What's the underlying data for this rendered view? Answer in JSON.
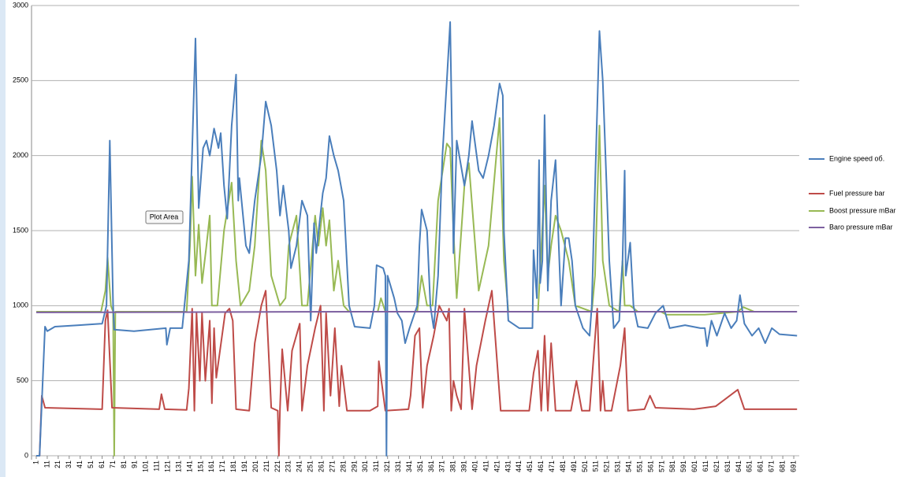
{
  "chart_data": {
    "type": "line",
    "annotation": "Plot Area",
    "xlim": [
      1,
      696
    ],
    "ylim": [
      0,
      3000
    ],
    "yticks": [
      0,
      500,
      1000,
      1500,
      2000,
      2500,
      3000
    ],
    "xticks": [
      1,
      11,
      21,
      31,
      41,
      51,
      61,
      71,
      81,
      91,
      101,
      111,
      121,
      131,
      141,
      151,
      161,
      171,
      181,
      191,
      201,
      211,
      221,
      231,
      241,
      251,
      261,
      271,
      281,
      291,
      301,
      311,
      321,
      331,
      341,
      351,
      361,
      371,
      381,
      391,
      401,
      411,
      421,
      431,
      441,
      451,
      461,
      471,
      481,
      491,
      501,
      511,
      521,
      531,
      541,
      551,
      561,
      571,
      581,
      591,
      601,
      611,
      621,
      631,
      641,
      651,
      661,
      671,
      681,
      691
    ],
    "grid": true,
    "legend": "right",
    "series": [
      {
        "name": "Engine speed об.",
        "color": "#4a7ebb",
        "x": [
          1,
          4,
          9,
          11,
          18,
          40,
          61,
          65,
          68,
          71,
          72,
          90,
          119,
          120,
          123,
          134,
          140,
          146,
          149,
          153,
          156,
          159,
          163,
          167,
          169,
          172,
          175,
          179,
          183,
          185,
          186,
          192,
          195,
          200,
          206,
          210,
          215,
          220,
          223,
          226,
          231,
          233,
          238,
          243,
          248,
          251,
          254,
          256,
          262,
          265,
          268,
          272,
          276,
          281,
          286,
          291,
          305,
          309,
          311,
          317,
          319,
          320,
          321,
          327,
          330,
          334,
          337,
          341,
          348,
          350,
          352,
          357,
          360,
          363,
          367,
          371,
          375,
          378,
          380,
          381,
          384,
          391,
          395,
          398,
          404,
          408,
          413,
          418,
          423,
          426,
          427,
          431,
          441,
          453,
          454,
          457,
          459,
          460,
          462,
          464,
          467,
          470,
          474,
          479,
          483,
          486,
          489,
          492,
          499,
          505,
          507,
          510,
          514,
          517,
          523,
          527,
          532,
          535,
          537,
          538,
          542,
          545,
          549,
          558,
          565,
          572,
          578,
          592,
          606,
          610,
          612,
          616,
          621,
          628,
          634,
          639,
          642,
          646,
          653,
          659,
          665,
          671,
          678,
          694
        ],
        "values": [
          0,
          0,
          860,
          830,
          860,
          870,
          880,
          1000,
          2100,
          1000,
          840,
          830,
          850,
          740,
          850,
          850,
          1300,
          2780,
          1650,
          2050,
          2100,
          2000,
          2180,
          2050,
          2150,
          1800,
          1580,
          2200,
          2540,
          1700,
          1850,
          1400,
          1350,
          1700,
          2000,
          2360,
          2200,
          1900,
          1600,
          1800,
          1500,
          1250,
          1400,
          1700,
          1600,
          900,
          1550,
          1350,
          1750,
          1850,
          2130,
          2000,
          1900,
          1700,
          1000,
          860,
          850,
          1000,
          1270,
          1250,
          1200,
          0,
          1200,
          1050,
          950,
          900,
          750,
          850,
          1000,
          1400,
          1640,
          1500,
          1000,
          850,
          1200,
          2000,
          2500,
          2890,
          2000,
          1350,
          2100,
          1800,
          2000,
          2230,
          1900,
          1850,
          2000,
          2200,
          2480,
          2400,
          1500,
          900,
          850,
          850,
          1370,
          1050,
          1970,
          1150,
          1300,
          2270,
          1100,
          1700,
          1970,
          1000,
          1450,
          1450,
          1300,
          1000,
          850,
          800,
          1000,
          1800,
          2830,
          2500,
          1300,
          850,
          900,
          1300,
          1900,
          1200,
          1420,
          1000,
          860,
          850,
          950,
          1000,
          850,
          870,
          850,
          850,
          730,
          900,
          800,
          950,
          850,
          900,
          1070,
          880,
          800,
          850,
          750,
          850,
          810,
          800
        ]
      },
      {
        "name": "Fuel pressure bar",
        "color": "#be4b48",
        "x": [
          1,
          4,
          6,
          9,
          61,
          64,
          66,
          70,
          113,
          115,
          118,
          138,
          140,
          143,
          145,
          147,
          150,
          152,
          155,
          159,
          161,
          163,
          165,
          173,
          177,
          180,
          183,
          195,
          200,
          206,
          210,
          215,
          221,
          222,
          223,
          225,
          230,
          234,
          241,
          243,
          248,
          255,
          260,
          263,
          265,
          269,
          273,
          277,
          279,
          284,
          305,
          312,
          313,
          319,
          340,
          342,
          346,
          350,
          353,
          357,
          363,
          368,
          375,
          377,
          379,
          381,
          384,
          388,
          391,
          398,
          402,
          410,
          416,
          420,
          424,
          450,
          454,
          458,
          461,
          464,
          467,
          470,
          474,
          488,
          493,
          498,
          505,
          512,
          515,
          517,
          519,
          525,
          533,
          537,
          540,
          555,
          560,
          565,
          600,
          620,
          640,
          646,
          694
        ],
        "values": [
          0,
          0,
          400,
          320,
          310,
          900,
          970,
          320,
          310,
          410,
          310,
          305,
          450,
          980,
          300,
          950,
          500,
          950,
          500,
          900,
          350,
          850,
          520,
          950,
          980,
          900,
          310,
          300,
          750,
          1000,
          1100,
          320,
          300,
          0,
          310,
          710,
          300,
          700,
          880,
          300,
          600,
          850,
          1000,
          300,
          950,
          400,
          850,
          330,
          600,
          300,
          300,
          330,
          630,
          300,
          310,
          400,
          800,
          850,
          320,
          600,
          800,
          1000,
          900,
          980,
          300,
          500,
          400,
          310,
          980,
          310,
          600,
          900,
          1100,
          700,
          300,
          300,
          550,
          700,
          300,
          800,
          300,
          750,
          300,
          300,
          500,
          300,
          300,
          980,
          300,
          500,
          300,
          300,
          600,
          850,
          300,
          310,
          400,
          320,
          310,
          330,
          440,
          310,
          310
        ]
      },
      {
        "name": "Boost pressure mBar",
        "color": "#98b954",
        "x": [
          1,
          60,
          64,
          66,
          69,
          71,
          72,
          73,
          138,
          141,
          143,
          146,
          149,
          152,
          156,
          159,
          161,
          166,
          172,
          179,
          183,
          187,
          195,
          200,
          206,
          210,
          215,
          223,
          228,
          231,
          238,
          243,
          248,
          255,
          258,
          262,
          265,
          268,
          272,
          276,
          281,
          286,
          312,
          315,
          319,
          348,
          352,
          357,
          362,
          367,
          375,
          378,
          381,
          384,
          391,
          395,
          404,
          413,
          423,
          427,
          431,
          458,
          464,
          467,
          470,
          474,
          479,
          486,
          492,
          507,
          510,
          514,
          517,
          523,
          532,
          535,
          537,
          542,
          549,
          570,
          575,
          610,
          640,
          645,
          655
        ],
        "values": [
          960,
          960,
          1100,
          1320,
          1000,
          960,
          0,
          960,
          960,
          1400,
          1860,
          1200,
          1540,
          1150,
          1400,
          1600,
          1000,
          1000,
          1500,
          1820,
          1300,
          1000,
          1100,
          1400,
          2100,
          1900,
          1200,
          1000,
          1050,
          1400,
          1600,
          1000,
          1000,
          1600,
          1400,
          1650,
          1400,
          1570,
          1100,
          1300,
          1000,
          960,
          960,
          1050,
          960,
          960,
          1200,
          1000,
          1000,
          1700,
          2080,
          2050,
          1500,
          1050,
          1800,
          1950,
          1100,
          1400,
          2250,
          1300,
          960,
          960,
          1800,
          1200,
          1400,
          1600,
          1500,
          1300,
          1000,
          960,
          1200,
          2200,
          1300,
          1000,
          960,
          1300,
          1000,
          1000,
          960,
          960,
          940,
          940,
          960,
          990,
          960
        ]
      },
      {
        "name": "Baro pressure mBar",
        "color": "#7d60a0",
        "x": [
          1,
          300,
          694
        ],
        "values": [
          955,
          960,
          960
        ]
      }
    ]
  }
}
